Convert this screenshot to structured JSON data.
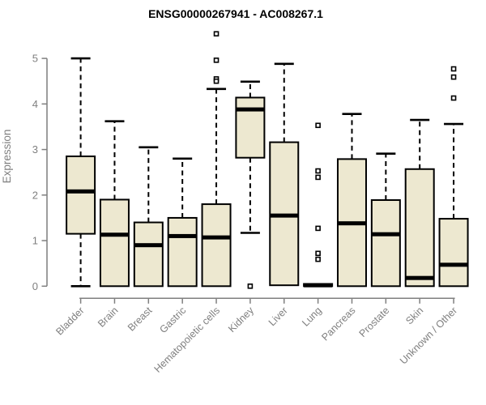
{
  "window": {
    "background": "#ffffff"
  },
  "chart_data": {
    "type": "boxplot",
    "title": "ENSG00000267941 - AC008267.1",
    "ylabel": "Expression",
    "xlabel": "",
    "ylim": [
      0,
      5
    ],
    "yticks": [
      0,
      1,
      2,
      3,
      4,
      5
    ],
    "grid": false,
    "legend": "none",
    "box_fill": "#EDE8D0",
    "box_stroke": "#000000",
    "axis_color": "#7F7F7F",
    "title_color": "#000000",
    "categories": [
      "Bladder",
      "Brain",
      "Breast",
      "Gastric",
      "Hematopoietic cells",
      "Kidney",
      "Liver",
      "Lung",
      "Pancreas",
      "Prostate",
      "Skin",
      "Unknown / Other"
    ],
    "series": [
      {
        "category": "Bladder",
        "whisker_low": 0,
        "q1": 1.15,
        "median": 2.08,
        "q3": 2.85,
        "whisker_high": 5.0,
        "outliers": []
      },
      {
        "category": "Brain",
        "whisker_low": 0,
        "q1": 0,
        "median": 1.13,
        "q3": 1.9,
        "whisker_high": 3.62,
        "outliers": []
      },
      {
        "category": "Breast",
        "whisker_low": 0,
        "q1": 0,
        "median": 0.9,
        "q3": 1.4,
        "whisker_high": 3.05,
        "outliers": []
      },
      {
        "category": "Gastric",
        "whisker_low": 0,
        "q1": 0,
        "median": 1.1,
        "q3": 1.5,
        "whisker_high": 2.8,
        "outliers": []
      },
      {
        "category": "Hematopoietic cells",
        "whisker_low": 0,
        "q1": 0,
        "median": 1.07,
        "q3": 1.8,
        "whisker_high": 4.33,
        "outliers": [
          5.54,
          4.96,
          4.55,
          4.5
        ]
      },
      {
        "category": "Kidney",
        "whisker_low": 1.17,
        "q1": 2.82,
        "median": 3.88,
        "q3": 4.14,
        "whisker_high": 4.49,
        "outliers": [
          0
        ]
      },
      {
        "category": "Liver",
        "whisker_low": 0.02,
        "q1": 0.02,
        "median": 1.55,
        "q3": 3.16,
        "whisker_high": 4.88,
        "outliers": []
      },
      {
        "category": "Lung",
        "whisker_low": 0,
        "q1": 0,
        "median": 0.02,
        "q3": 0.05,
        "whisker_high": 0.05,
        "outliers": [
          3.53,
          2.53,
          2.39,
          1.27,
          0.72,
          0.59
        ]
      },
      {
        "category": "Pancreas",
        "whisker_low": 0,
        "q1": 0,
        "median": 1.38,
        "q3": 2.79,
        "whisker_high": 3.78,
        "outliers": []
      },
      {
        "category": "Prostate",
        "whisker_low": 0,
        "q1": 0,
        "median": 1.14,
        "q3": 1.89,
        "whisker_high": 2.91,
        "outliers": []
      },
      {
        "category": "Skin",
        "whisker_low": 0,
        "q1": 0,
        "median": 0.18,
        "q3": 2.57,
        "whisker_high": 3.65,
        "outliers": []
      },
      {
        "category": "Unknown / Other",
        "whisker_low": 0,
        "q1": 0,
        "median": 0.47,
        "q3": 1.48,
        "whisker_high": 3.56,
        "outliers": [
          4.77,
          4.59,
          4.13
        ]
      }
    ]
  }
}
